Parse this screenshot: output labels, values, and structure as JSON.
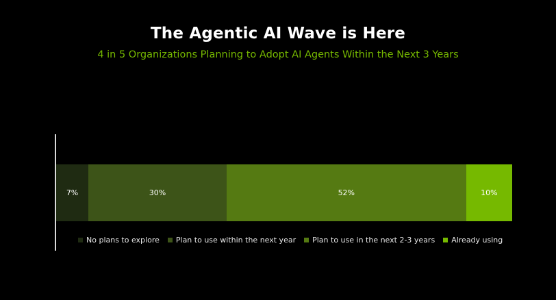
{
  "title": "The Agentic AI Wave is Here",
  "subtitle": "4 in 5 Organizations Planning to Adopt AI Agents Within the Next 3 Years",
  "colors": {
    "subtitle": "#76b900",
    "axis": "#d9d9d9"
  },
  "chart_data": {
    "type": "bar",
    "orientation": "horizontal",
    "stacked": true,
    "unit": "%",
    "categories": [
      ""
    ],
    "series": [
      {
        "name": "No plans to explore",
        "values": [
          7
        ],
        "label": "7%",
        "color": "#1f2b12"
      },
      {
        "name": "Plan to use within the next year",
        "values": [
          30
        ],
        "label": "30%",
        "color": "#3d5418"
      },
      {
        "name": "Plan to use in the next 2-3 years",
        "values": [
          52
        ],
        "label": "52%",
        "color": "#557a12"
      },
      {
        "name": "Already using",
        "values": [
          10
        ],
        "label": "10%",
        "color": "#76b900"
      }
    ],
    "legend": "bottom"
  }
}
